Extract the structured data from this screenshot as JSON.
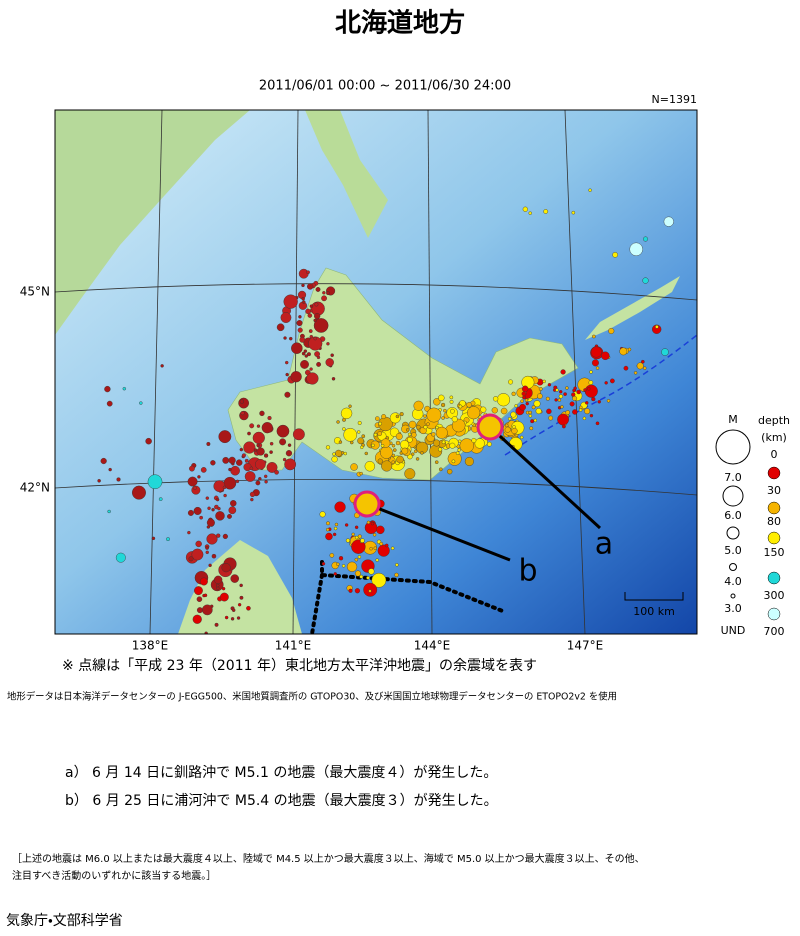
{
  "header": {
    "title": "北海道地方",
    "period": "2011/06/01 00:00 ~ 2011/06/30 24:00",
    "count": "N=1391"
  },
  "map": {
    "lat_labels": [
      "45°N",
      "42°N"
    ],
    "lon_labels": [
      "138°E",
      "141°E",
      "144°E",
      "147°E"
    ],
    "scale": "100 km",
    "event_labels": [
      "a",
      "b"
    ]
  },
  "legend": {
    "magnitude_title": "M",
    "depth_title": "depth",
    "depth_unit": "(km)",
    "magnitudes": [
      "7.0",
      "6.0",
      "5.0",
      "4.0",
      "3.0",
      "UND"
    ],
    "depths": [
      "0",
      "30",
      "80",
      "150",
      "300",
      "700"
    ]
  },
  "notes": {
    "aftershock": "※ 点線は「平成 23 年（2011 年）東北地方太平洋沖地震」の余震域を表す",
    "credit": "地形データは日本海洋データセンターの J-EGG500、米国地質調査所の GTOPO30、及び米国国立地球物理データセンターの ETOPO2v2 を使用"
  },
  "events": [
    "a） 6 月 14 日に釧路沖で M5.1 の地震（最大震度４）が発生した。",
    "b） 6 月 25 日に浦河沖で M5.4 の地震（最大震度３）が発生した。"
  ],
  "footnote": [
    "［上述の地震は M6.0 以上または最大震度４以上、陸域で M4.5 以上かつ最大震度３以上、海域で M5.0 以上かつ最大震度３以上、その他、",
    "注目すべき活動のいずれかに該当する地震。］"
  ],
  "agency": "気象庁・文部科学省"
}
